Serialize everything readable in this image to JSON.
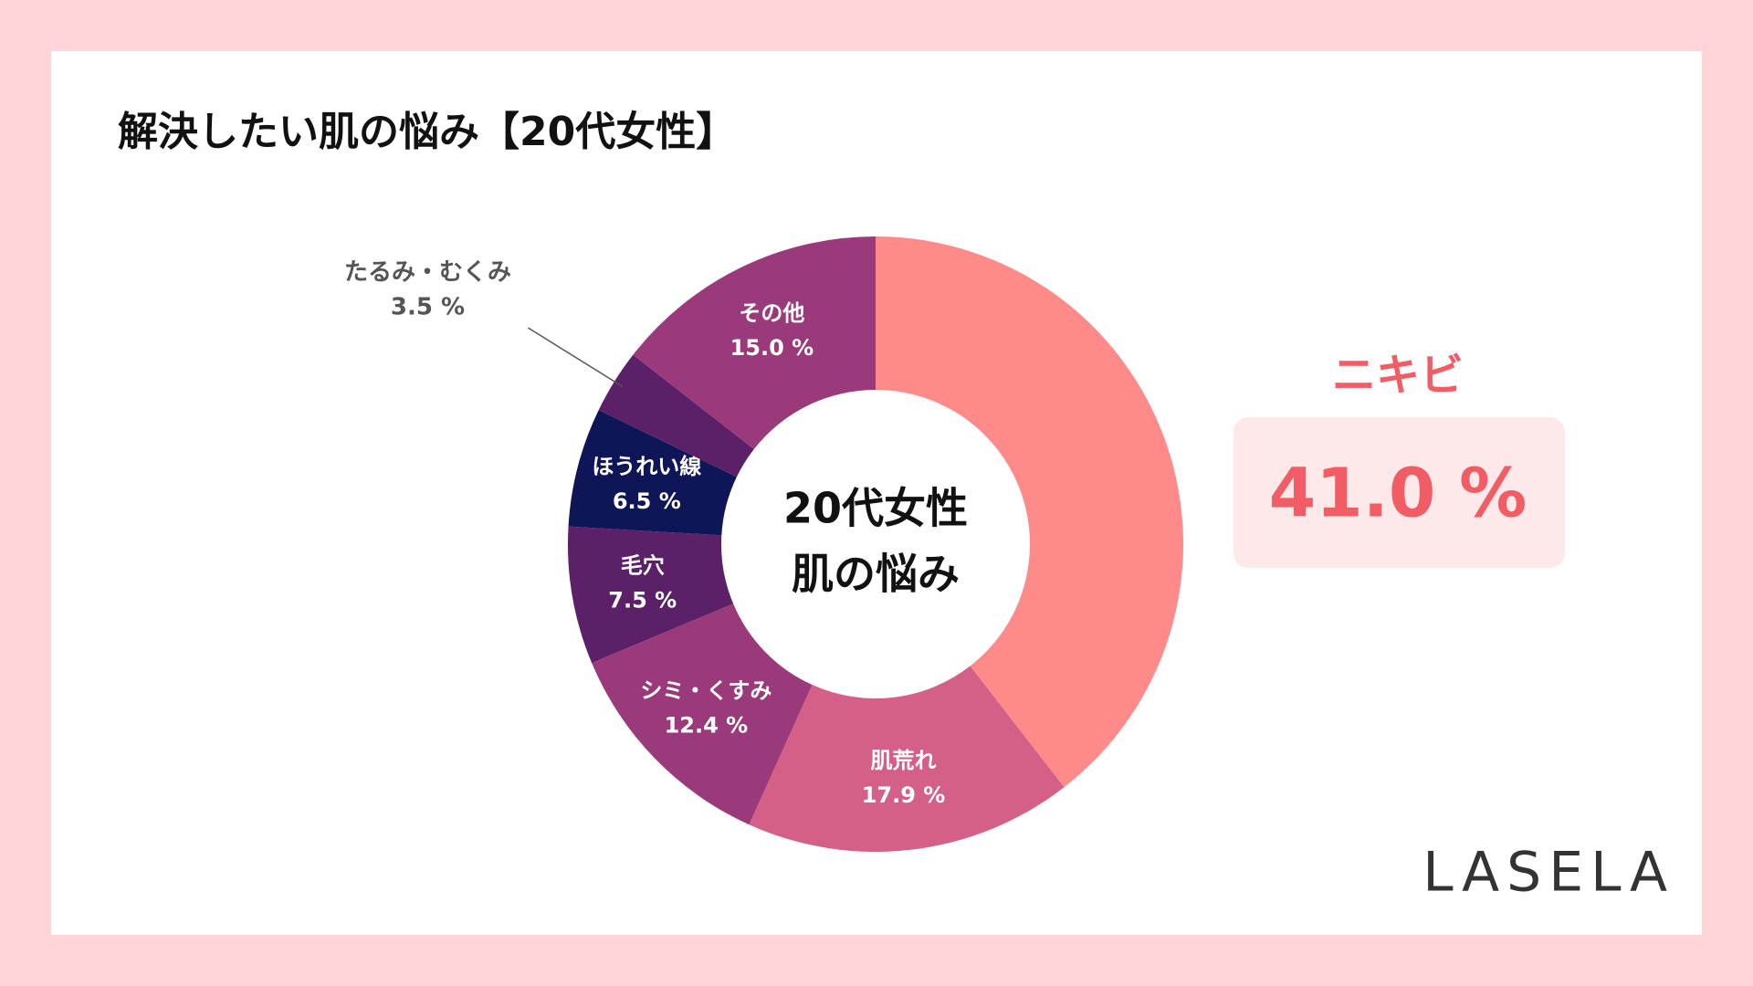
{
  "chart_data": {
    "type": "pie",
    "title": "解決したい肌の悩み【20代女性】",
    "center_text": [
      "20代女性",
      "肌の悩み"
    ],
    "categories": [
      "ニキビ",
      "肌荒れ",
      "シミ・くすみ",
      "毛穴",
      "ほうれい線",
      "たるみ・むくみ",
      "その他"
    ],
    "values": [
      41.0,
      17.9,
      12.4,
      7.5,
      6.5,
      3.5,
      15.0
    ],
    "value_labels": [
      "41.0 %",
      "17.9 %",
      "12.4 %",
      "7.5 %",
      "6.5 %",
      "3.5 %",
      "15.0 %"
    ],
    "colors": [
      "#ff8a8a",
      "#d45f87",
      "#9b3a7a",
      "#5c2069",
      "#0f1657",
      "#5c2069",
      "#9b3a7a"
    ],
    "brand": "LASELA"
  }
}
